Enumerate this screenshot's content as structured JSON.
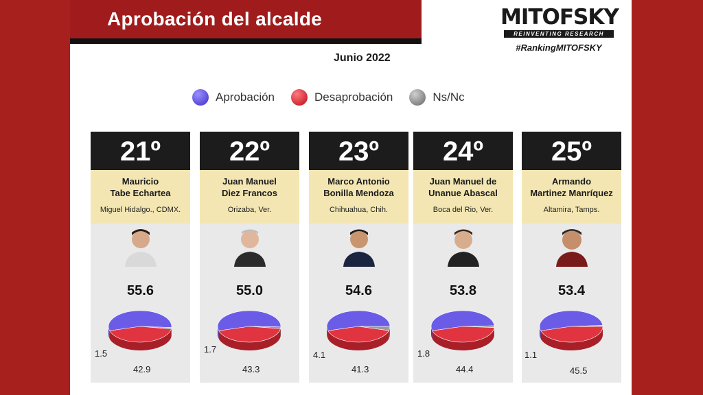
{
  "header": {
    "title": "Aprobación del alcalde",
    "date": "Junio 2022"
  },
  "brand": {
    "name": "MITOFSKY",
    "tagline": "REINVENTING RESEARCH",
    "hashtag": "#RankingMITOFSKY"
  },
  "legend": [
    {
      "label": "Aprobación",
      "color": "#6b5ce8"
    },
    {
      "label": "Desaprobación",
      "color": "#e03540"
    },
    {
      "label": "Ns/Nc",
      "color": "#9a9a9a"
    }
  ],
  "colors": {
    "background": "#a8201e",
    "approval": "#6b5ce8",
    "disapproval": "#e03540",
    "nsnc": "#9a9a9a"
  },
  "chart_data": {
    "type": "pie",
    "series_names": [
      "Aprobación",
      "Desaprobación",
      "Ns/Nc"
    ],
    "items": [
      {
        "rank": "21º",
        "name_line1": "Mauricio",
        "name_line2": "Tabe Echartea",
        "place": "Miguel Hidalgo., CDMX.",
        "approval": 55.6,
        "approval_label": "55.6",
        "disapproval": 42.9,
        "disapproval_label": "42.9",
        "nsnc": 1.5,
        "nsnc_label": "1.5"
      },
      {
        "rank": "22º",
        "name_line1": "Juan Manuel",
        "name_line2": "Diez Francos",
        "place": "Orizaba, Ver.",
        "approval": 55.0,
        "approval_label": "55.0",
        "disapproval": 43.3,
        "disapproval_label": "43.3",
        "nsnc": 1.7,
        "nsnc_label": "1.7"
      },
      {
        "rank": "23º",
        "name_line1": "Marco Antonio",
        "name_line2": "Bonilla Mendoza",
        "place": "Chihuahua, Chih.",
        "approval": 54.6,
        "approval_label": "54.6",
        "disapproval": 41.3,
        "disapproval_label": "41.3",
        "nsnc": 4.1,
        "nsnc_label": "4.1"
      },
      {
        "rank": "24º",
        "name_line1": "Juan Manuel de",
        "name_line2": "Unanue Abascal",
        "place": "Boca del Rio, Ver.",
        "approval": 53.8,
        "approval_label": "53.8",
        "disapproval": 44.4,
        "disapproval_label": "44.4",
        "nsnc": 1.8,
        "nsnc_label": "1.8"
      },
      {
        "rank": "25º",
        "name_line1": "Armando",
        "name_line2": "Martinez Manríquez",
        "place": "Altamira, Tamps.",
        "approval": 53.4,
        "approval_label": "53.4",
        "disapproval": 45.5,
        "disapproval_label": "45.5",
        "nsnc": 1.1,
        "nsnc_label": "1.1"
      }
    ]
  }
}
